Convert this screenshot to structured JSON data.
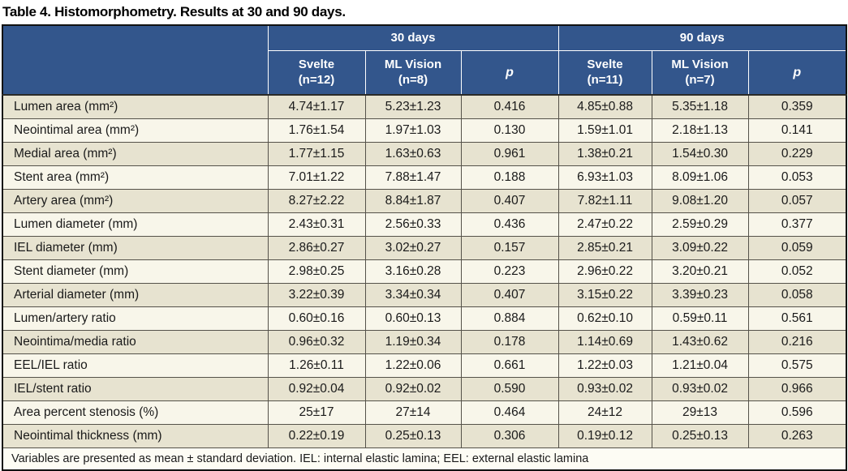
{
  "title": "Table 4. Histomorphometry. Results at 30 and 90 days.",
  "table": {
    "group_headers": [
      "30 days",
      "90 days"
    ],
    "col_headers": [
      {
        "line1": "Svelte",
        "line2": "(n=12)"
      },
      {
        "line1": "ML Vision",
        "line2": "(n=8)"
      },
      {
        "line1": "p"
      },
      {
        "line1": "Svelte",
        "line2": "(n=11)"
      },
      {
        "line1": "ML Vision",
        "line2": "(n=7)"
      },
      {
        "line1": "p"
      }
    ],
    "rows": [
      {
        "label": "Lumen area (mm²)",
        "values": [
          "4.74±1.17",
          "5.23±1.23",
          "0.416",
          "4.85±0.88",
          "5.35±1.18",
          "0.359"
        ]
      },
      {
        "label": "Neointimal area (mm²)",
        "values": [
          "1.76±1.54",
          "1.97±1.03",
          "0.130",
          "1.59±1.01",
          "2.18±1.13",
          "0.141"
        ]
      },
      {
        "label": "Medial area (mm²)",
        "values": [
          "1.77±1.15",
          "1.63±0.63",
          "0.961",
          "1.38±0.21",
          "1.54±0.30",
          "0.229"
        ]
      },
      {
        "label": "Stent area (mm²)",
        "values": [
          "7.01±1.22",
          "7.88±1.47",
          "0.188",
          "6.93±1.03",
          "8.09±1.06",
          "0.053"
        ]
      },
      {
        "label": "Artery area (mm²)",
        "values": [
          "8.27±2.22",
          "8.84±1.87",
          "0.407",
          "7.82±1.11",
          "9.08±1.20",
          "0.057"
        ]
      },
      {
        "label": "Lumen diameter (mm)",
        "values": [
          "2.43±0.31",
          "2.56±0.33",
          "0.436",
          "2.47±0.22",
          "2.59±0.29",
          "0.377"
        ]
      },
      {
        "label": "IEL diameter (mm)",
        "values": [
          "2.86±0.27",
          "3.02±0.27",
          "0.157",
          "2.85±0.21",
          "3.09±0.22",
          "0.059"
        ]
      },
      {
        "label": "Stent diameter (mm)",
        "values": [
          "2.98±0.25",
          "3.16±0.28",
          "0.223",
          "2.96±0.22",
          "3.20±0.21",
          "0.052"
        ]
      },
      {
        "label": "Arterial diameter (mm)",
        "values": [
          "3.22±0.39",
          "3.34±0.34",
          "0.407",
          "3.15±0.22",
          "3.39±0.23",
          "0.058"
        ]
      },
      {
        "label": "Lumen/artery ratio",
        "values": [
          "0.60±0.16",
          "0.60±0.13",
          "0.884",
          "0.62±0.10",
          "0.59±0.11",
          "0.561"
        ]
      },
      {
        "label": "Neointima/media ratio",
        "values": [
          "0.96±0.32",
          "1.19±0.34",
          "0.178",
          "1.14±0.69",
          "1.43±0.62",
          "0.216"
        ]
      },
      {
        "label": "EEL/IEL ratio",
        "values": [
          "1.26±0.11",
          "1.22±0.06",
          "0.661",
          "1.22±0.03",
          "1.21±0.04",
          "0.575"
        ]
      },
      {
        "label": "IEL/stent ratio",
        "values": [
          "0.92±0.04",
          "0.92±0.02",
          "0.590",
          "0.93±0.02",
          "0.93±0.02",
          "0.966"
        ]
      },
      {
        "label": "Area percent stenosis (%)",
        "values": [
          "25±17",
          "27±14",
          "0.464",
          "24±12",
          "29±13",
          "0.596"
        ]
      },
      {
        "label": "Neointimal thickness (mm)",
        "values": [
          "0.22±0.19",
          "0.25±0.13",
          "0.306",
          "0.19±0.12",
          "0.25±0.13",
          "0.263"
        ]
      }
    ],
    "footnote": "Variables are presented as mean ± standard deviation. IEL: internal elastic lamina; EEL: external elastic lamina"
  },
  "colors": {
    "header-bg": "#33568C",
    "header-text": "#FFFFFF",
    "row-odd": "#E7E3D0",
    "row-even": "#F8F6EA",
    "footer-bg": "#FDFCF4",
    "grid": "#55524A",
    "outer": "#121212",
    "text": "#1A1A1A"
  }
}
